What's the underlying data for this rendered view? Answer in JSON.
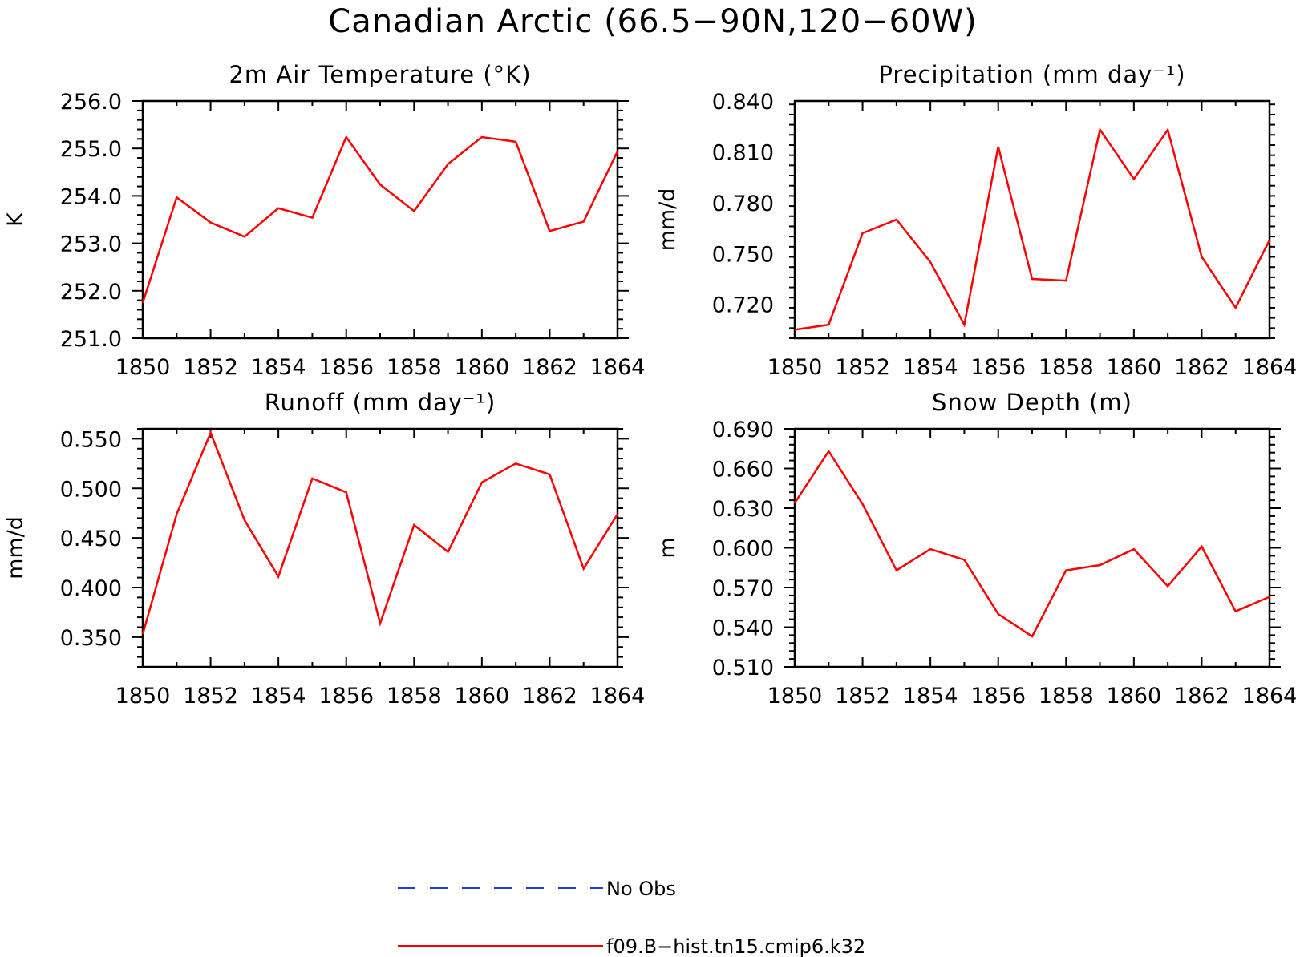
{
  "title": "Canadian Arctic (66.5−90N,120−60W)",
  "legend": [
    {
      "label": "No Obs",
      "color": "#1f3fd6",
      "dashed": true
    },
    {
      "label": "f09.B−hist.tn15.cmip6.k32",
      "color": "#ff0000",
      "dashed": false
    }
  ],
  "chart_data": [
    {
      "type": "line",
      "title": "2m Air Temperature (°K)",
      "ylabel": "K",
      "x": [
        1850,
        1851,
        1852,
        1853,
        1854,
        1855,
        1856,
        1857,
        1858,
        1859,
        1860,
        1861,
        1862,
        1863,
        1864
      ],
      "xticks": [
        1850,
        1852,
        1854,
        1856,
        1858,
        1860,
        1862,
        1864
      ],
      "xticklabels": [
        "1850",
        "1852",
        "1854",
        "1856",
        "1858",
        "1860",
        "1862",
        "1864"
      ],
      "xlim": [
        1850,
        1864
      ],
      "ylim": [
        251.0,
        256.0
      ],
      "yticks": [
        251.0,
        252.0,
        253.0,
        254.0,
        255.0,
        256.0
      ],
      "yticklabels": [
        "251.0",
        "252.0",
        "253.0",
        "254.0",
        "255.0",
        "256.0"
      ],
      "series": [
        {
          "name": "f09.B−hist.tn15.cmip6.k32",
          "color": "#ff0000",
          "values": [
            251.75,
            253.97,
            253.44,
            253.14,
            253.74,
            253.54,
            255.24,
            254.24,
            253.68,
            254.67,
            255.24,
            255.14,
            253.26,
            253.46,
            254.94
          ]
        }
      ]
    },
    {
      "type": "line",
      "title": "Precipitation (mm day⁻¹)",
      "ylabel": "mm/d",
      "x": [
        1850,
        1851,
        1852,
        1853,
        1854,
        1855,
        1856,
        1857,
        1858,
        1859,
        1860,
        1861,
        1862,
        1863,
        1864
      ],
      "xticks": [
        1850,
        1852,
        1854,
        1856,
        1858,
        1860,
        1862,
        1864
      ],
      "xticklabels": [
        "1850",
        "1852",
        "1854",
        "1856",
        "1858",
        "1860",
        "1862",
        "1864"
      ],
      "xlim": [
        1850,
        1864
      ],
      "ylim": [
        0.7,
        0.84
      ],
      "yticks": [
        0.72,
        0.75,
        0.78,
        0.81,
        0.84
      ],
      "yticklabels": [
        "0.720",
        "0.750",
        "0.780",
        "0.810",
        "0.840"
      ],
      "series": [
        {
          "name": "f09.B−hist.tn15.cmip6.k32",
          "color": "#ff0000",
          "values": [
            0.705,
            0.708,
            0.762,
            0.77,
            0.745,
            0.708,
            0.813,
            0.735,
            0.734,
            0.823,
            0.794,
            0.823,
            0.748,
            0.718,
            0.758
          ]
        }
      ]
    },
    {
      "type": "line",
      "title": "Runoff (mm day⁻¹)",
      "ylabel": "mm/d",
      "x": [
        1850,
        1851,
        1852,
        1853,
        1854,
        1855,
        1856,
        1857,
        1858,
        1859,
        1860,
        1861,
        1862,
        1863,
        1864
      ],
      "xticks": [
        1850,
        1852,
        1854,
        1856,
        1858,
        1860,
        1862,
        1864
      ],
      "xticklabels": [
        "1850",
        "1852",
        "1854",
        "1856",
        "1858",
        "1860",
        "1862",
        "1864"
      ],
      "xlim": [
        1850,
        1864
      ],
      "ylim": [
        0.32,
        0.56
      ],
      "yticks": [
        0.35,
        0.4,
        0.45,
        0.5,
        0.55
      ],
      "yticklabels": [
        "0.350",
        "0.400",
        "0.450",
        "0.500",
        "0.550"
      ],
      "series": [
        {
          "name": "f09.B−hist.tn15.cmip6.k32",
          "color": "#ff0000",
          "values": [
            0.353,
            0.474,
            0.556,
            0.468,
            0.411,
            0.51,
            0.496,
            0.364,
            0.463,
            0.436,
            0.506,
            0.525,
            0.514,
            0.419,
            0.474
          ]
        }
      ]
    },
    {
      "type": "line",
      "title": "Snow Depth (m)",
      "ylabel": "m",
      "x": [
        1850,
        1851,
        1852,
        1853,
        1854,
        1855,
        1856,
        1857,
        1858,
        1859,
        1860,
        1861,
        1862,
        1863,
        1864
      ],
      "xticks": [
        1850,
        1852,
        1854,
        1856,
        1858,
        1860,
        1862,
        1864
      ],
      "xticklabels": [
        "1850",
        "1852",
        "1854",
        "1856",
        "1858",
        "1860",
        "1862",
        "1864"
      ],
      "xlim": [
        1850,
        1864
      ],
      "ylim": [
        0.51,
        0.69
      ],
      "yticks": [
        0.51,
        0.54,
        0.57,
        0.6,
        0.63,
        0.66,
        0.69
      ],
      "yticklabels": [
        "0.510",
        "0.540",
        "0.570",
        "0.600",
        "0.630",
        "0.660",
        "0.690"
      ],
      "series": [
        {
          "name": "f09.B−hist.tn15.cmip6.k32",
          "color": "#ff0000",
          "values": [
            0.634,
            0.673,
            0.633,
            0.583,
            0.599,
            0.591,
            0.55,
            0.533,
            0.583,
            0.587,
            0.599,
            0.571,
            0.601,
            0.552,
            0.563
          ]
        }
      ]
    }
  ]
}
